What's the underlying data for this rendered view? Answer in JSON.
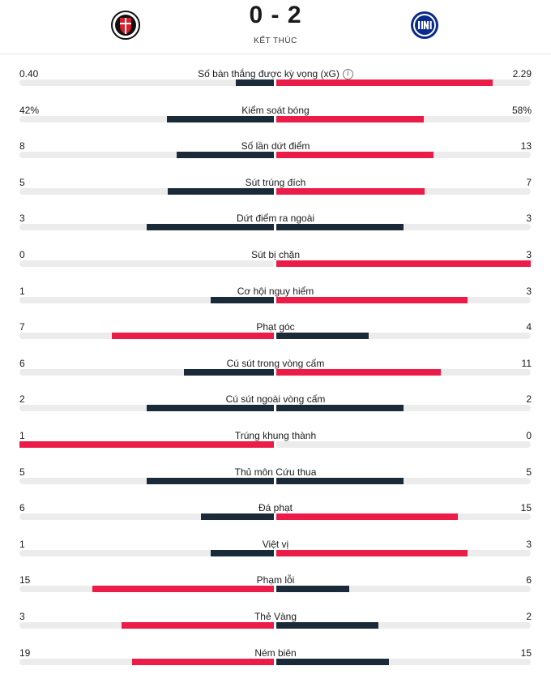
{
  "match": {
    "home_logo_icon": "feyenoord-crest-icon",
    "away_logo_icon": "inter-crest-icon",
    "home_score": "0",
    "separator": "-",
    "away_score": "2",
    "status": "KẾT THÚC"
  },
  "colors": {
    "leading": "#ec1c48",
    "trailing": "#1a2a38",
    "track": "#ececec"
  },
  "stats": [
    {
      "label": "Số bàn thắng được kỳ vọng (xG)",
      "home": "0.40",
      "away": "2.29",
      "home_val": 0.4,
      "away_val": 2.29,
      "info": true
    },
    {
      "label": "Kiểm soát bóng",
      "home": "42%",
      "away": "58%",
      "home_val": 42,
      "away_val": 58
    },
    {
      "label": "Số lần dứt điểm",
      "home": "8",
      "away": "13",
      "home_val": 8,
      "away_val": 13
    },
    {
      "label": "Sút trúng đích",
      "home": "5",
      "away": "7",
      "home_val": 5,
      "away_val": 7
    },
    {
      "label": "Dứt điểm ra ngoài",
      "home": "3",
      "away": "3",
      "home_val": 3,
      "away_val": 3
    },
    {
      "label": "Sút bị chặn",
      "home": "0",
      "away": "3",
      "home_val": 0,
      "away_val": 3
    },
    {
      "label": "Cơ hội nguy hiểm",
      "home": "1",
      "away": "3",
      "home_val": 1,
      "away_val": 3
    },
    {
      "label": "Phạt góc",
      "home": "7",
      "away": "4",
      "home_val": 7,
      "away_val": 4
    },
    {
      "label": "Cú sút trong vòng cấm",
      "home": "6",
      "away": "11",
      "home_val": 6,
      "away_val": 11
    },
    {
      "label": "Cú sút ngoài vòng cấm",
      "home": "2",
      "away": "2",
      "home_val": 2,
      "away_val": 2
    },
    {
      "label": "Trúng khung thành",
      "home": "1",
      "away": "0",
      "home_val": 1,
      "away_val": 0
    },
    {
      "label": "Thủ môn Cứu thua",
      "home": "5",
      "away": "5",
      "home_val": 5,
      "away_val": 5
    },
    {
      "label": "Đá phạt",
      "home": "6",
      "away": "15",
      "home_val": 6,
      "away_val": 15
    },
    {
      "label": "Việt vị",
      "home": "1",
      "away": "3",
      "home_val": 1,
      "away_val": 3
    },
    {
      "label": "Phạm lỗi",
      "home": "15",
      "away": "6",
      "home_val": 15,
      "away_val": 6
    },
    {
      "label": "Thẻ Vàng",
      "home": "3",
      "away": "2",
      "home_val": 3,
      "away_val": 2
    },
    {
      "label": "Ném biên",
      "home": "19",
      "away": "15",
      "home_val": 19,
      "away_val": 15
    }
  ]
}
